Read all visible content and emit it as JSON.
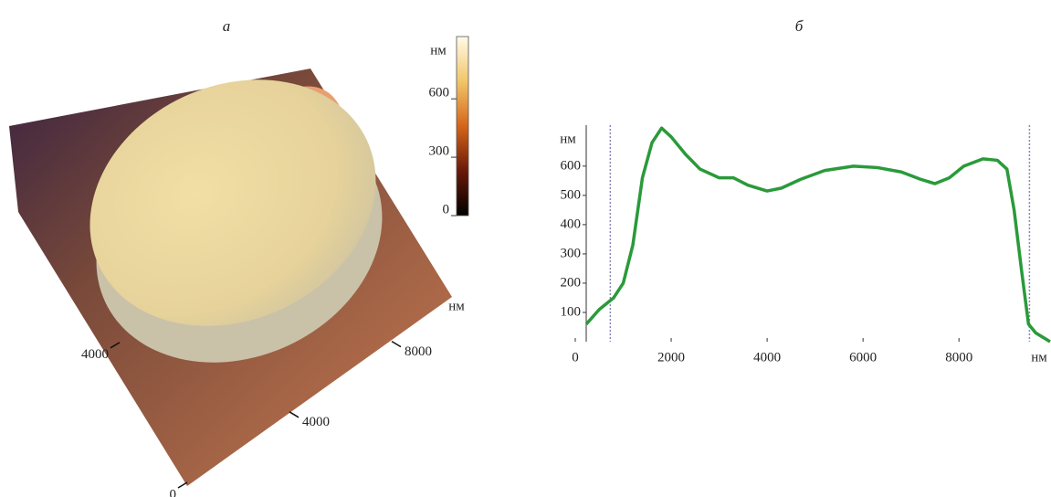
{
  "chart_data": [
    {
      "type": "surface",
      "title": "а",
      "colorbar": {
        "label": "нм",
        "lim": [
          0,
          920
        ],
        "ticks": [
          0,
          300,
          600
        ]
      },
      "x_label": "нм",
      "xlim": [
        0,
        10000
      ],
      "xticks": [
        4000,
        8000
      ],
      "ylim": [
        0,
        10000
      ],
      "yticks": [
        0,
        4000
      ]
    },
    {
      "type": "line",
      "title": "б",
      "y_label": "нм",
      "x_label": "нм",
      "x": [
        230,
        500,
        800,
        1000,
        1200,
        1400,
        1600,
        1800,
        2000,
        2300,
        2600,
        3000,
        3300,
        3600,
        4000,
        4300,
        4700,
        5200,
        5800,
        6300,
        6800,
        7200,
        7500,
        7800,
        8100,
        8500,
        8800,
        9000,
        9150,
        9300,
        9450,
        9600,
        9900
      ],
      "series": [
        {
          "color": "#2a9a3a",
          "values": [
            60,
            110,
            150,
            200,
            330,
            560,
            680,
            730,
            700,
            640,
            590,
            560,
            560,
            535,
            515,
            525,
            555,
            585,
            600,
            595,
            580,
            555,
            540,
            560,
            600,
            625,
            620,
            590,
            450,
            250,
            60,
            30,
            0
          ]
        }
      ],
      "markers": [
        730,
        9470
      ],
      "marker_color": "#8888bb",
      "xlim": [
        0,
        9900
      ],
      "ylim": [
        0,
        740
      ],
      "xticks": [
        0,
        2000,
        4000,
        6000,
        8000
      ],
      "yticks": [
        100,
        200,
        300,
        400,
        500,
        600
      ]
    }
  ]
}
